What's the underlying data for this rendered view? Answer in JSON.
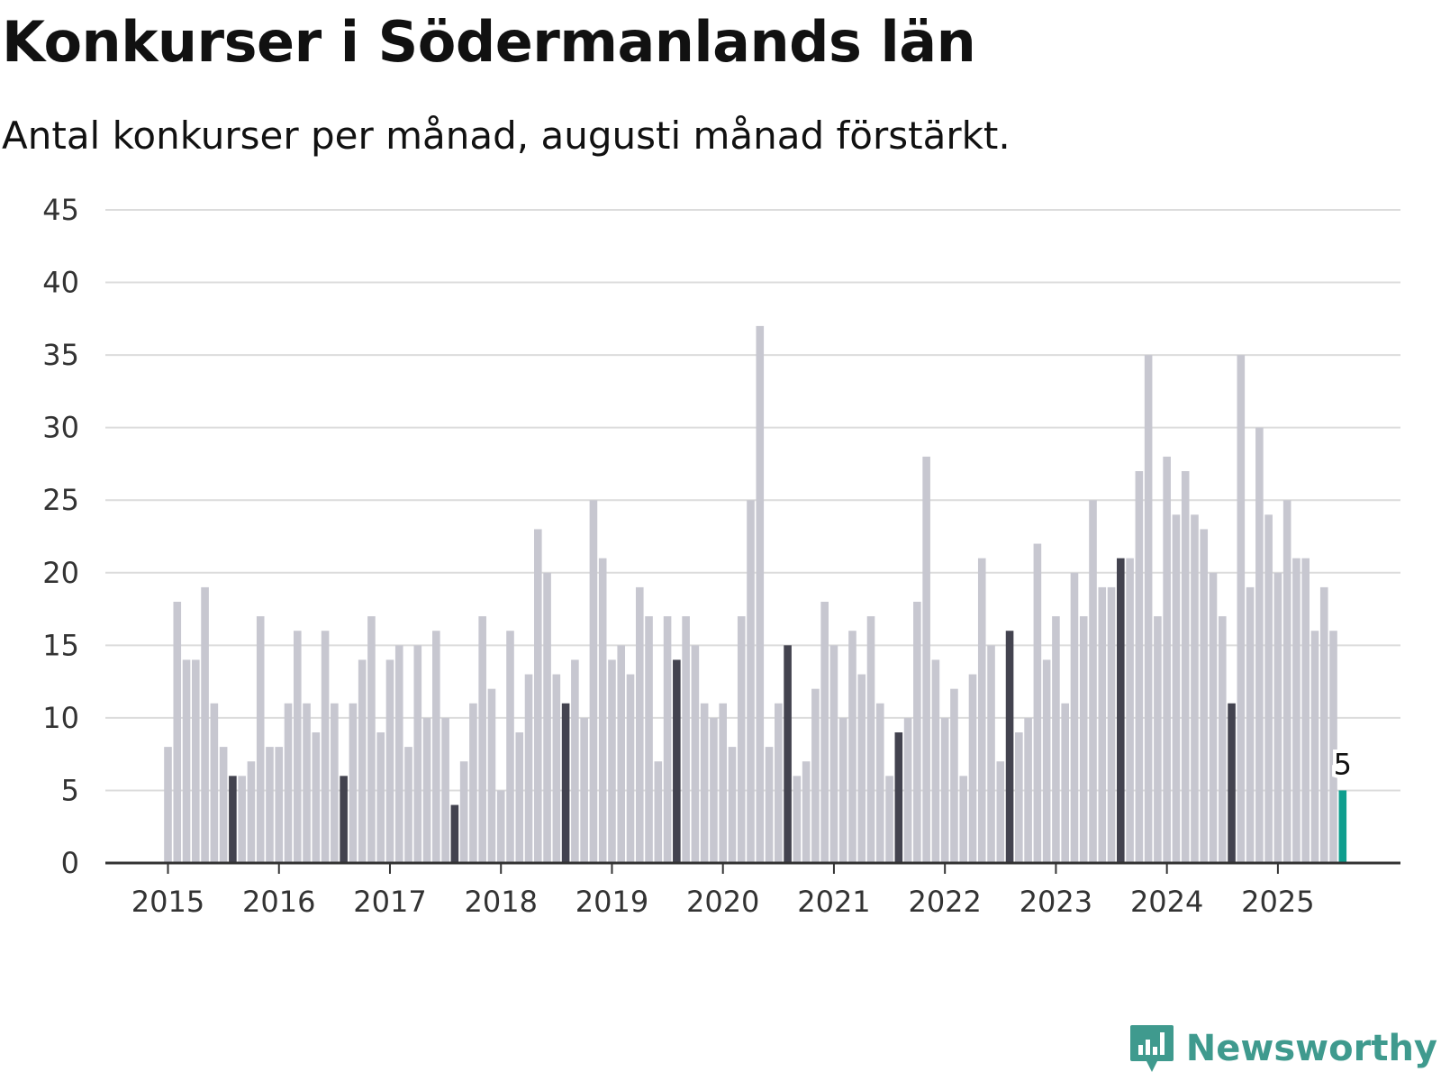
{
  "header": {
    "title": "Konkurser i Södermanlands län",
    "subtitle": "Antal konkurser per månad, augusti månad förstärkt."
  },
  "brand": {
    "name": "Newsworthy",
    "icon": "newsworthy-logo-icon",
    "color": "#3f9a8e"
  },
  "colors": {
    "bar": "#c7c7d0",
    "highlight": "#43434f",
    "latest": "#0e9e8e",
    "grid": "#dcdcdc",
    "axis": "#333333"
  },
  "chart_data": {
    "type": "bar",
    "title": "Konkurser i Södermanlands län",
    "subtitle": "Antal konkurser per månad, augusti månad förstärkt.",
    "xlabel": "",
    "ylabel": "",
    "ylim": [
      0,
      45
    ],
    "yticks": [
      "0",
      "5",
      "10",
      "15",
      "20",
      "25",
      "30",
      "35",
      "40",
      "45"
    ],
    "xticks": [
      "2015",
      "2016",
      "2017",
      "2018",
      "2019",
      "2020",
      "2021",
      "2022",
      "2023",
      "2024",
      "2025"
    ],
    "grid": true,
    "highlight_month": "augusti",
    "start": "2015-01",
    "values": [
      8,
      18,
      14,
      14,
      19,
      11,
      8,
      6,
      6,
      7,
      17,
      8,
      8,
      11,
      16,
      11,
      9,
      16,
      11,
      6,
      11,
      14,
      17,
      9,
      14,
      15,
      8,
      15,
      10,
      16,
      10,
      4,
      7,
      11,
      17,
      12,
      5,
      16,
      9,
      13,
      23,
      20,
      13,
      11,
      14,
      10,
      25,
      21,
      14,
      15,
      13,
      19,
      17,
      7,
      17,
      14,
      17,
      15,
      11,
      10,
      11,
      8,
      17,
      25,
      37,
      8,
      11,
      15,
      6,
      7,
      12,
      18,
      15,
      10,
      16,
      13,
      17,
      11,
      6,
      9,
      10,
      18,
      28,
      14,
      10,
      12,
      6,
      13,
      21,
      15,
      7,
      16,
      9,
      10,
      22,
      14,
      17,
      11,
      20,
      17,
      25,
      19,
      19,
      21,
      21,
      27,
      35,
      17,
      28,
      24,
      27,
      24,
      23,
      20,
      17,
      11,
      35,
      19,
      30,
      24,
      20,
      25,
      21,
      21,
      16,
      19,
      16,
      5
    ],
    "value_label": {
      "index": 127,
      "text": "5"
    }
  }
}
